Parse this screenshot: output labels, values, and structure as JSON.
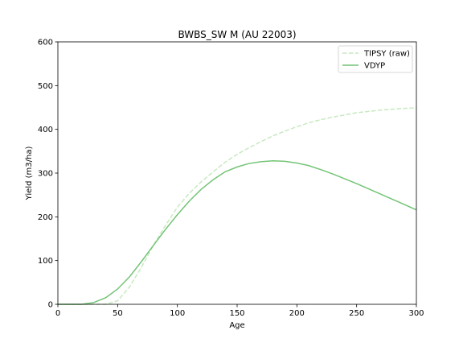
{
  "chart_data": {
    "type": "line",
    "title": "BWBS_SW M (AU 22003)",
    "xlabel": "Age",
    "ylabel": "Yield (m3/ha)",
    "xlim": [
      0,
      300
    ],
    "ylim": [
      0,
      600
    ],
    "xticks": [
      "0",
      "50",
      "100",
      "150",
      "200",
      "250",
      "300"
    ],
    "yticks": [
      "0",
      "100",
      "200",
      "300",
      "400",
      "500",
      "600"
    ],
    "grid": false,
    "legend_position": "top-right",
    "x": [
      0,
      10,
      20,
      30,
      40,
      50,
      60,
      70,
      80,
      90,
      100,
      110,
      120,
      130,
      140,
      150,
      160,
      170,
      180,
      190,
      200,
      210,
      220,
      230,
      240,
      250,
      260,
      270,
      280,
      290,
      300
    ],
    "series": [
      {
        "name": "TIPSY (raw)",
        "style": "dashed",
        "color": "#c7e9c0",
        "values": [
          0,
          0,
          0,
          0,
          0,
          8,
          40,
          85,
          135,
          180,
          222,
          254,
          280,
          303,
          325,
          343,
          358,
          372,
          385,
          396,
          406,
          415,
          422,
          428,
          433,
          438,
          441,
          444,
          446,
          448,
          449
        ]
      },
      {
        "name": "VDYP",
        "style": "solid",
        "color": "#74c476",
        "values": [
          0,
          0,
          0,
          4,
          15,
          35,
          63,
          98,
          135,
          171,
          205,
          236,
          263,
          285,
          303,
          314,
          322,
          326,
          328,
          327,
          323,
          317,
          308,
          298,
          287,
          276,
          264,
          252,
          240,
          228,
          216
        ]
      }
    ]
  }
}
